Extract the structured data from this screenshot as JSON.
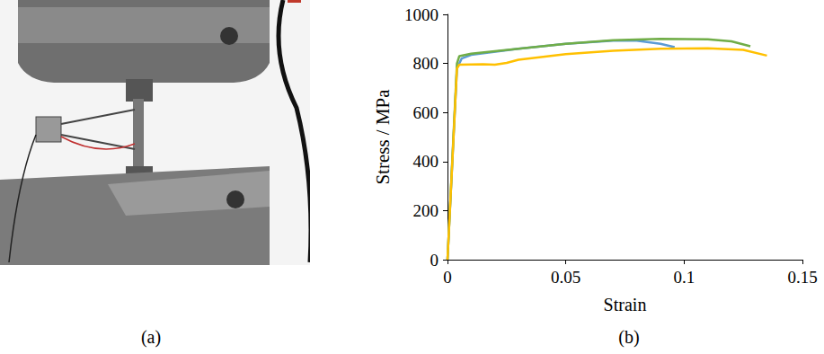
{
  "photo_panel": {
    "label": "(a)"
  },
  "chart_data": {
    "type": "line",
    "annotations": [
      "(b)"
    ],
    "x_label": "Strain",
    "y_label": "Stress / MPa",
    "xlim": [
      0,
      0.15
    ],
    "xticks": [
      0,
      0.05,
      0.1,
      0.15
    ],
    "ylim": [
      0,
      1000
    ],
    "yticks": [
      0,
      200,
      400,
      600,
      800,
      1000
    ],
    "grid": false,
    "series": [
      {
        "color": "#5b9bd5",
        "x": [
          0,
          0.004,
          0.006,
          0.01,
          0.03,
          0.05,
          0.07,
          0.08,
          0.09,
          0.096
        ],
        "values": [
          0,
          780,
          820,
          835,
          860,
          880,
          893,
          893,
          880,
          866
        ]
      },
      {
        "color": "#70ad47",
        "x": [
          0,
          0.004,
          0.005,
          0.01,
          0.03,
          0.05,
          0.07,
          0.09,
          0.11,
          0.12,
          0.128
        ],
        "values": [
          0,
          800,
          830,
          840,
          860,
          880,
          895,
          900,
          898,
          890,
          870
        ]
      },
      {
        "color": "#ffc000",
        "x": [
          0,
          0.004,
          0.005,
          0.015,
          0.02,
          0.025,
          0.03,
          0.05,
          0.07,
          0.09,
          0.11,
          0.125,
          0.135
        ],
        "values": [
          0,
          780,
          795,
          797,
          795,
          802,
          815,
          838,
          852,
          860,
          862,
          855,
          832
        ]
      }
    ]
  }
}
